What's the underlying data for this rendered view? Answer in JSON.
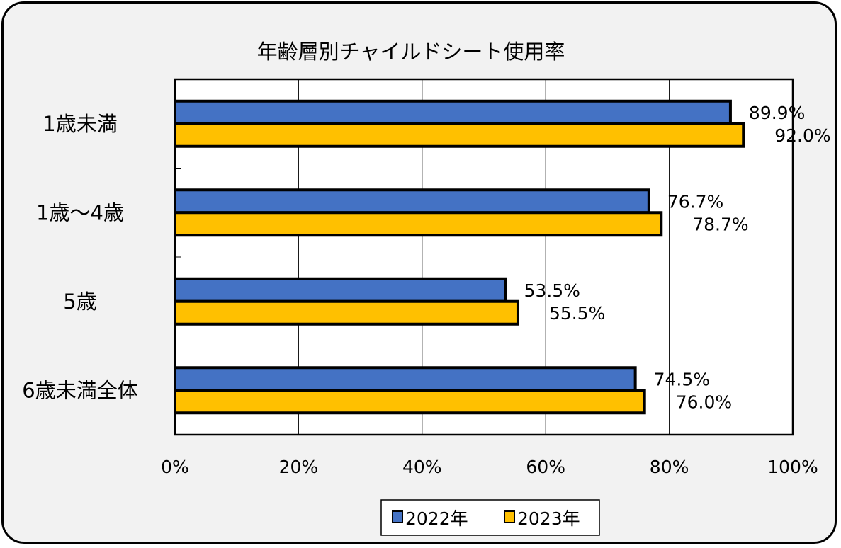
{
  "chart_data": {
    "type": "bar",
    "orientation": "horizontal",
    "title": "年齢層別チャイルドシート使用率",
    "categories": [
      "1歳未満",
      "1歳～4歳",
      "5歳",
      "6歳未満全体"
    ],
    "series": [
      {
        "name": "2022年",
        "values": [
          89.9,
          76.7,
          53.5,
          74.5
        ],
        "labels": [
          "89.9%",
          "76.7%",
          "53.5%",
          "74.5%"
        ],
        "color": "#4472c4"
      },
      {
        "name": "2023年",
        "values": [
          92.0,
          78.7,
          55.5,
          76.0
        ],
        "labels": [
          "92.0%",
          "78.7%",
          "55.5%",
          "76.0%"
        ],
        "color": "#ffc000"
      }
    ],
    "xlim": [
      0,
      100
    ],
    "x_ticks": [
      "0%",
      "20%",
      "40%",
      "60%",
      "80%",
      "100%"
    ],
    "grid": true,
    "legend_position": "bottom",
    "xlabel": "",
    "ylabel": ""
  },
  "colors": {
    "frame_background": "#f2f2f2",
    "plot_background": "#ffffff",
    "gridline": "#000000"
  }
}
